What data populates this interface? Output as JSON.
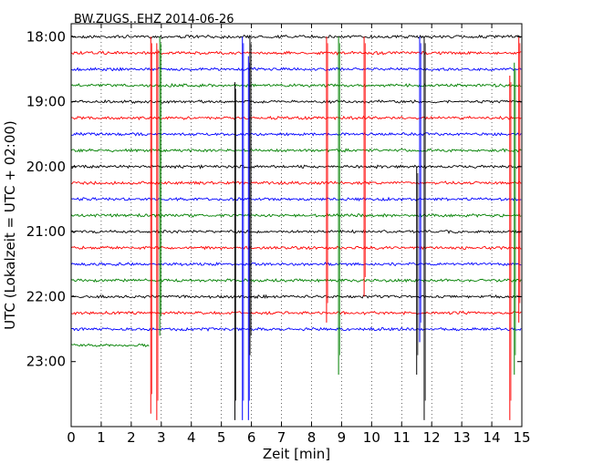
{
  "chart_data": {
    "type": "line",
    "title": "BW.ZUGS..EHZ 2014-06-26",
    "xlabel": "Zeit  [min]",
    "ylabel": "UTC (Lokalzeit = UTC + 02:00)",
    "xlim": [
      0,
      15
    ],
    "x_ticks": [
      "0",
      "1",
      "2",
      "3",
      "4",
      "5",
      "6",
      "7",
      "8",
      "9",
      "10",
      "11",
      "12",
      "13",
      "14",
      "15"
    ],
    "ylim_hours": [
      17.8,
      24.0
    ],
    "y_ticks": [
      {
        "label": "18:00",
        "hour": 18.0
      },
      {
        "label": "19:00",
        "hour": 19.0
      },
      {
        "label": "20:00",
        "hour": 20.0
      },
      {
        "label": "21:00",
        "hour": 21.0
      },
      {
        "label": "22:00",
        "hour": 22.0
      },
      {
        "label": "23:00",
        "hour": 23.0
      }
    ],
    "grid": "vertical dotted",
    "traces": [
      {
        "start": "18:00",
        "color": "#000000",
        "duration_min": 15
      },
      {
        "start": "18:15",
        "color": "#ff0000",
        "duration_min": 15
      },
      {
        "start": "18:30",
        "color": "#0000ff",
        "duration_min": 15
      },
      {
        "start": "18:45",
        "color": "#008000",
        "duration_min": 15
      },
      {
        "start": "19:00",
        "color": "#000000",
        "duration_min": 15
      },
      {
        "start": "19:15",
        "color": "#ff0000",
        "duration_min": 15
      },
      {
        "start": "19:30",
        "color": "#0000ff",
        "duration_min": 15
      },
      {
        "start": "19:45",
        "color": "#008000",
        "duration_min": 15
      },
      {
        "start": "20:00",
        "color": "#000000",
        "duration_min": 15
      },
      {
        "start": "20:15",
        "color": "#ff0000",
        "duration_min": 15
      },
      {
        "start": "20:30",
        "color": "#0000ff",
        "duration_min": 15
      },
      {
        "start": "20:45",
        "color": "#008000",
        "duration_min": 15
      },
      {
        "start": "21:00",
        "color": "#000000",
        "duration_min": 15
      },
      {
        "start": "21:15",
        "color": "#ff0000",
        "duration_min": 15
      },
      {
        "start": "21:30",
        "color": "#0000ff",
        "duration_min": 15
      },
      {
        "start": "21:45",
        "color": "#008000",
        "duration_min": 15
      },
      {
        "start": "22:00",
        "color": "#000000",
        "duration_min": 15
      },
      {
        "start": "22:15",
        "color": "#ff0000",
        "duration_min": 15
      },
      {
        "start": "22:30",
        "color": "#0000ff",
        "duration_min": 15
      },
      {
        "start": "22:45",
        "color": "#008000",
        "duration_min": 2.6
      }
    ],
    "spikes": [
      {
        "x": 2.65,
        "color": "#ff0000",
        "from": 18.0,
        "to": 23.8
      },
      {
        "x": 2.85,
        "color": "#ff0000",
        "from": 18.1,
        "to": 23.9
      },
      {
        "x": 2.95,
        "color": "#008000",
        "from": 18.0,
        "to": 22.6
      },
      {
        "x": 5.45,
        "color": "#000000",
        "from": 18.7,
        "to": 23.9
      },
      {
        "x": 5.7,
        "color": "#0000ff",
        "from": 18.0,
        "to": 23.9
      },
      {
        "x": 5.9,
        "color": "#0000ff",
        "from": 18.3,
        "to": 23.9
      },
      {
        "x": 5.95,
        "color": "#000000",
        "from": 18.0,
        "to": 22.9
      },
      {
        "x": 8.5,
        "color": "#ff0000",
        "from": 18.0,
        "to": 22.4
      },
      {
        "x": 8.9,
        "color": "#008000",
        "from": 18.0,
        "to": 23.2
      },
      {
        "x": 9.75,
        "color": "#ff0000",
        "from": 18.0,
        "to": 22.0
      },
      {
        "x": 11.5,
        "color": "#000000",
        "from": 20.0,
        "to": 23.2
      },
      {
        "x": 11.6,
        "color": "#0000ff",
        "from": 18.0,
        "to": 22.7
      },
      {
        "x": 11.75,
        "color": "#000000",
        "from": 18.0,
        "to": 23.9
      },
      {
        "x": 14.6,
        "color": "#ff0000",
        "from": 18.6,
        "to": 23.9
      },
      {
        "x": 14.75,
        "color": "#008000",
        "from": 18.4,
        "to": 23.2
      },
      {
        "x": 14.9,
        "color": "#ff0000",
        "from": 18.0,
        "to": 22.4
      }
    ]
  }
}
